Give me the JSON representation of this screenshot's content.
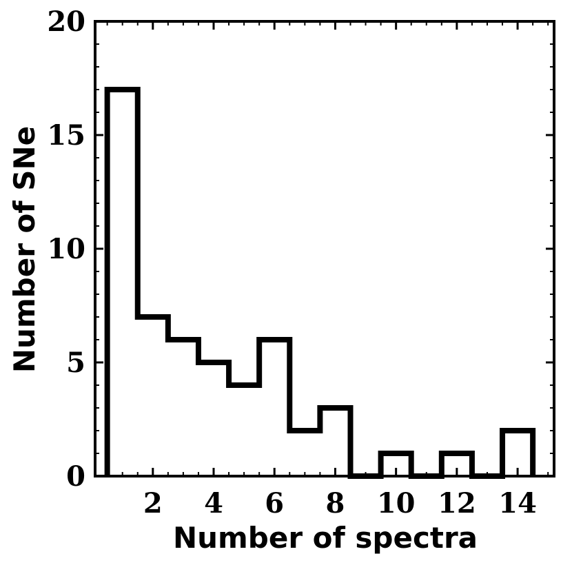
{
  "chart_data": {
    "type": "bar",
    "histogram": true,
    "style": "step outline, unfilled",
    "xlabel": "Number of spectra",
    "ylabel": "Number of SNe",
    "bins": [
      1,
      2,
      3,
      4,
      5,
      6,
      7,
      8,
      9,
      10,
      11,
      12,
      13,
      14
    ],
    "bin_width": 1,
    "values": [
      17,
      7,
      6,
      5,
      4,
      6,
      2,
      3,
      0,
      1,
      0,
      1,
      0,
      2
    ],
    "xlim": [
      0.1,
      15.2
    ],
    "ylim": [
      0,
      20
    ],
    "x_ticks": [
      "2",
      "4",
      "6",
      "8",
      "10",
      "12",
      "14"
    ],
    "y_ticks": [
      "0",
      "5",
      "10",
      "15",
      "20"
    ],
    "grid": false,
    "line_color": "#000000"
  }
}
